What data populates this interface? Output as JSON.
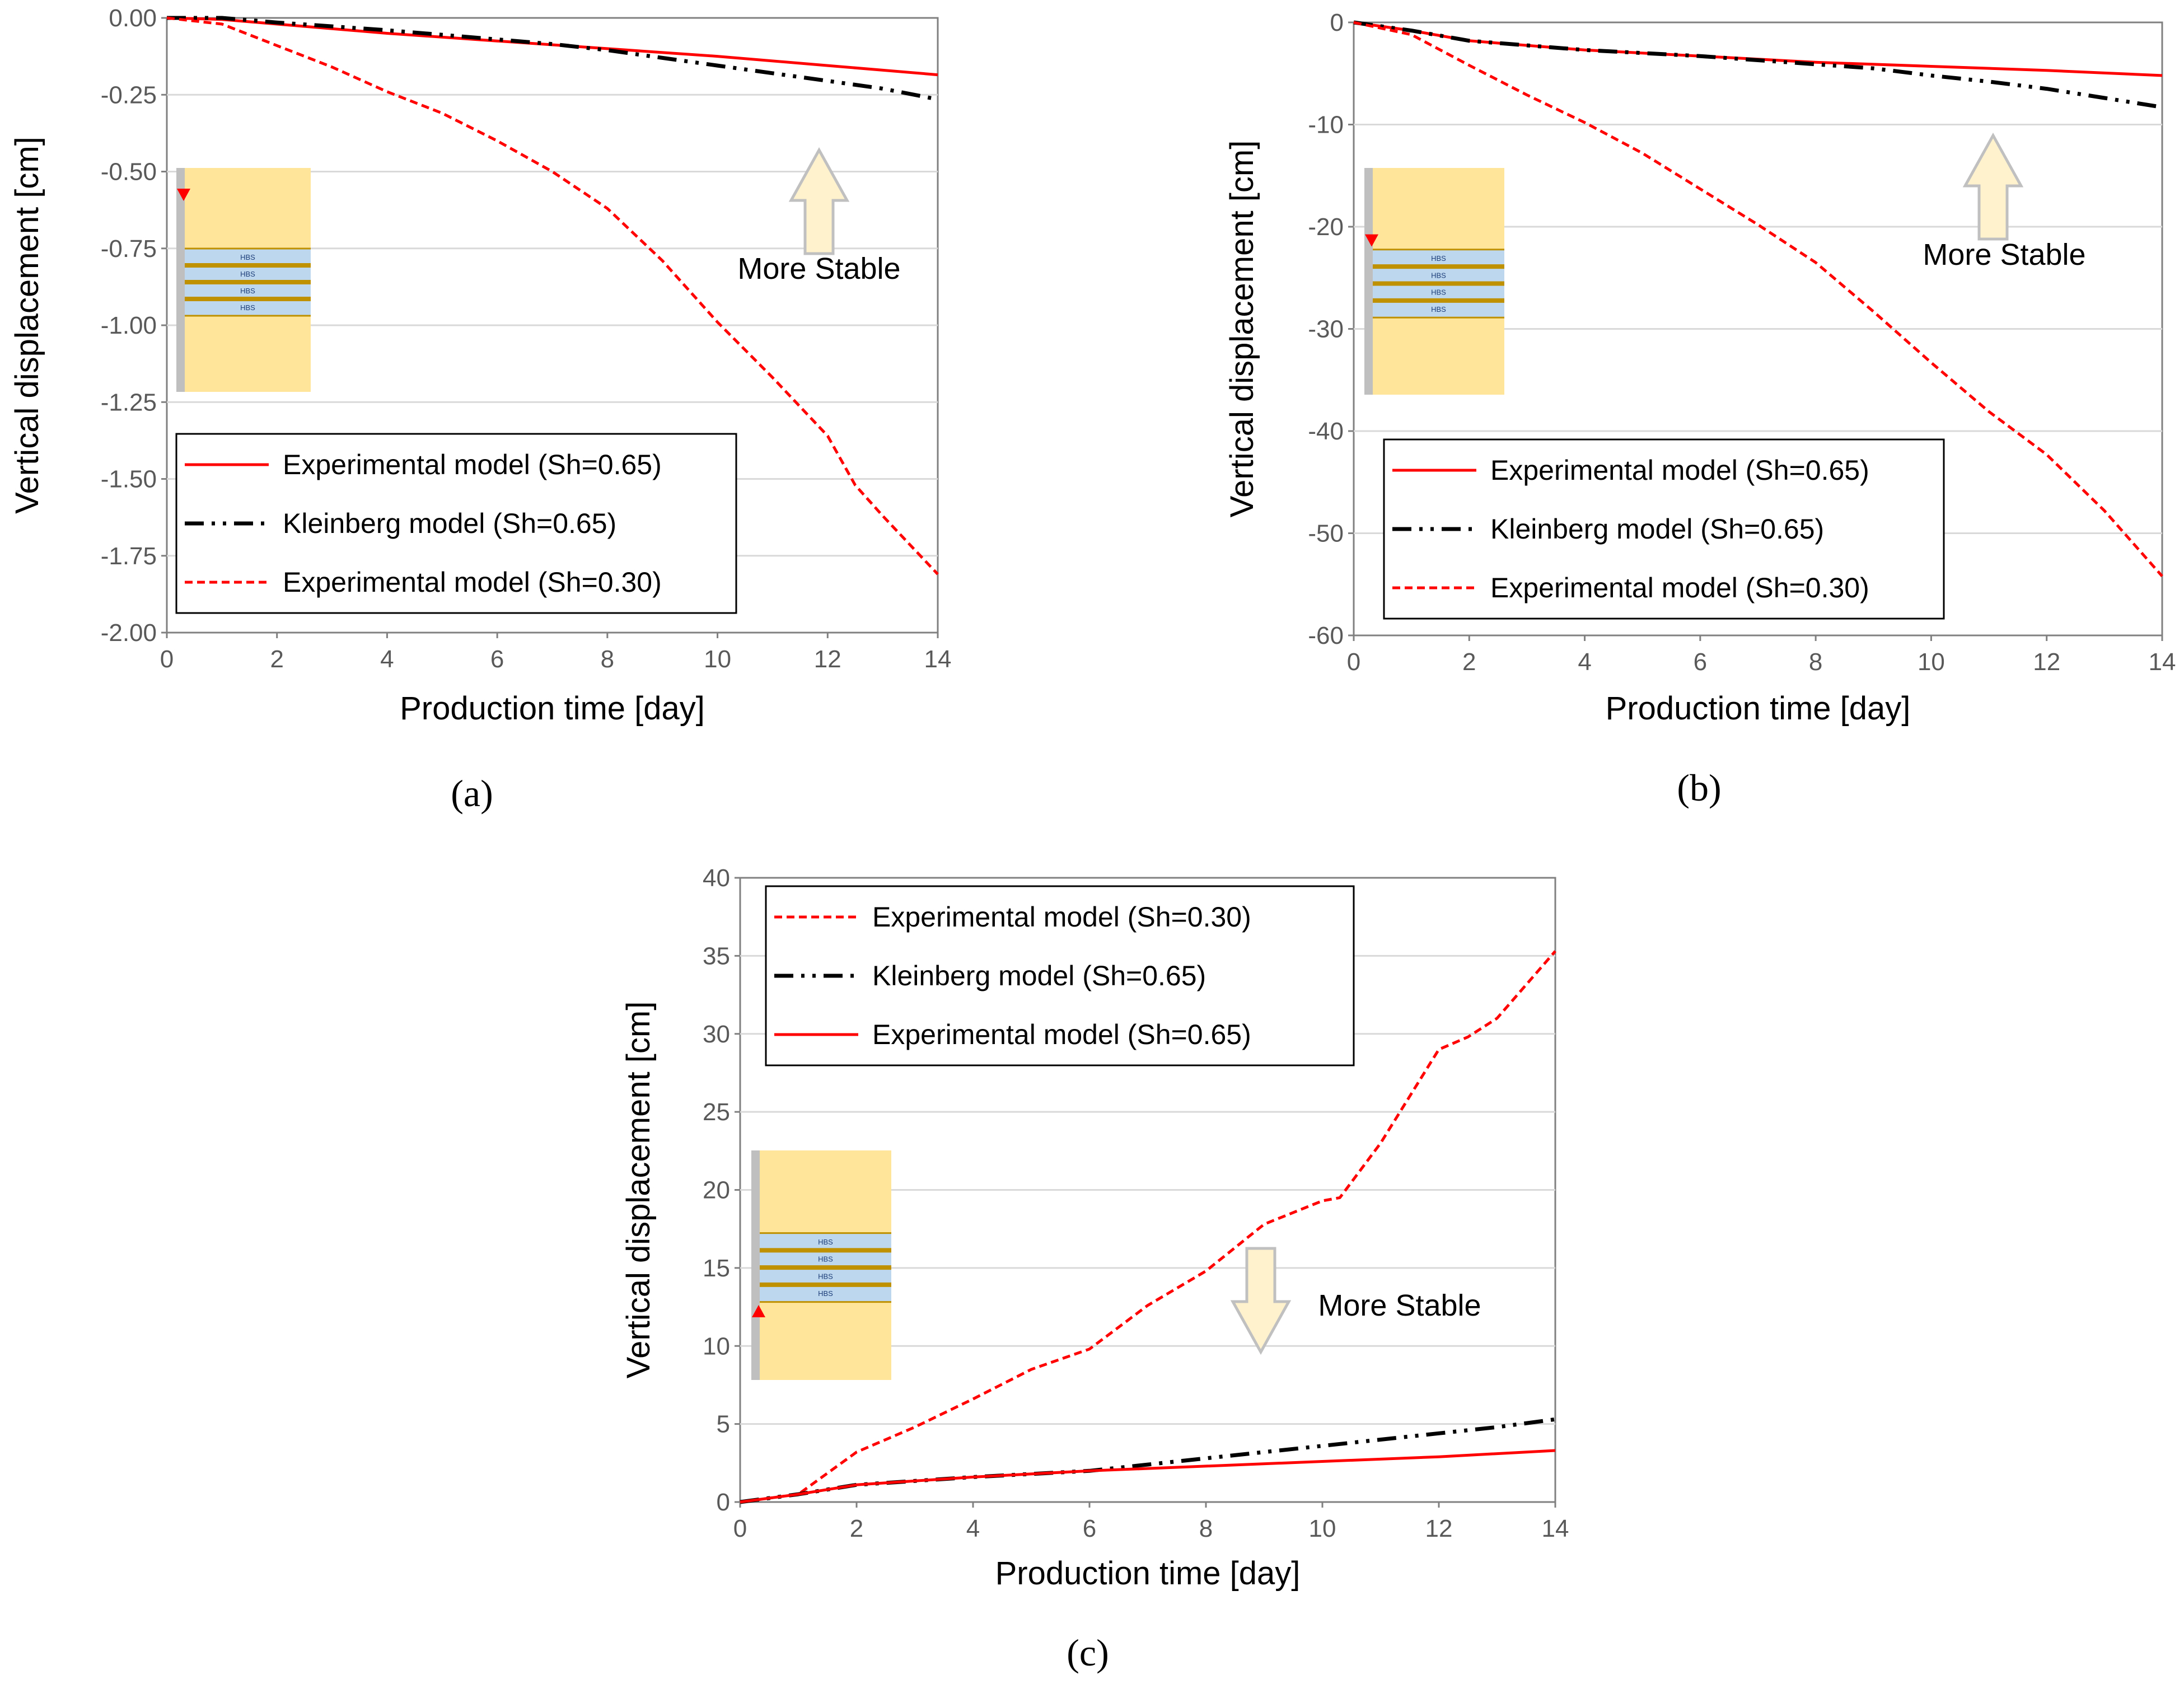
{
  "chart_data": [
    {
      "id": "a",
      "type": "line",
      "caption_letter": "a",
      "xlabel": "Production time [day]",
      "ylabel": "Vertical displacement [cm]",
      "xlim": [
        0,
        14
      ],
      "ylim": [
        -2.0,
        0.0
      ],
      "xticks": [
        "0",
        "2",
        "4",
        "6",
        "8",
        "10",
        "12",
        "14"
      ],
      "yticks": [
        "0.00",
        "-0.25",
        "-0.50",
        "-0.75",
        "-1.00",
        "-1.25",
        "-1.50",
        "-1.75",
        "-2.00"
      ],
      "grid": true,
      "legend_position": "bottom-left",
      "annotation": "More Stable",
      "annotation_direction": "up",
      "hbs_label": "HBS",
      "marker_direction": "down",
      "series": [
        {
          "name": "Experimental model (Sh=0.65)",
          "style": "solid",
          "color": "#ff0000",
          "x": [
            0,
            1,
            2,
            4,
            6,
            8,
            10,
            12,
            14
          ],
          "y": [
            0,
            -0.005,
            -0.02,
            -0.05,
            -0.075,
            -0.1,
            -0.125,
            -0.155,
            -0.185
          ]
        },
        {
          "name": "Kleinberg model (Sh=0.65)",
          "style": "dashdotdot",
          "color": "#000000",
          "x": [
            0,
            1,
            2,
            4,
            6,
            7,
            8,
            9,
            10,
            11,
            12,
            13,
            14
          ],
          "y": [
            0,
            0,
            -0.015,
            -0.04,
            -0.07,
            -0.085,
            -0.105,
            -0.13,
            -0.155,
            -0.18,
            -0.205,
            -0.23,
            -0.265
          ]
        },
        {
          "name": "Experimental model (Sh=0.30)",
          "style": "dashed",
          "color": "#ff0000",
          "x": [
            0,
            1,
            2,
            3,
            4,
            5,
            6,
            7,
            8,
            9,
            10,
            11,
            12,
            12.5,
            13,
            14
          ],
          "y": [
            0,
            -0.02,
            -0.09,
            -0.16,
            -0.24,
            -0.31,
            -0.4,
            -0.5,
            -0.62,
            -0.79,
            -0.99,
            -1.17,
            -1.36,
            -1.52,
            -1.62,
            -1.81
          ]
        }
      ]
    },
    {
      "id": "b",
      "type": "line",
      "caption_letter": "b",
      "xlabel": "Production time [day]",
      "ylabel": "Vertical displacement [cm]",
      "xlim": [
        0,
        14
      ],
      "ylim": [
        -60,
        0
      ],
      "xticks": [
        "0",
        "2",
        "4",
        "6",
        "8",
        "10",
        "12",
        "14"
      ],
      "yticks": [
        "0",
        "-10",
        "-20",
        "-30",
        "-40",
        "-50",
        "-60"
      ],
      "grid": true,
      "legend_position": "bottom-left",
      "annotation": "More Stable",
      "annotation_direction": "up",
      "hbs_label": "HBS",
      "marker_direction": "down",
      "series": [
        {
          "name": "Experimental model (Sh=0.65)",
          "style": "solid",
          "color": "#ff0000",
          "x": [
            0,
            1,
            2,
            4,
            6,
            8,
            10,
            12,
            14
          ],
          "y": [
            0,
            -0.8,
            -1.8,
            -2.7,
            -3.3,
            -3.9,
            -4.3,
            -4.7,
            -5.2
          ]
        },
        {
          "name": "Kleinberg model (Sh=0.65)",
          "style": "dashdotdot",
          "color": "#000000",
          "x": [
            0,
            1,
            2,
            4,
            6,
            8,
            9,
            10,
            11,
            12,
            13,
            14
          ],
          "y": [
            0,
            -0.8,
            -1.8,
            -2.7,
            -3.3,
            -4.1,
            -4.5,
            -5.2,
            -5.8,
            -6.5,
            -7.4,
            -8.3
          ]
        },
        {
          "name": "Experimental model (Sh=0.30)",
          "style": "dashed",
          "color": "#ff0000",
          "x": [
            0,
            1,
            2,
            3,
            4,
            5,
            6,
            7,
            8,
            9,
            10,
            11,
            12,
            13,
            14
          ],
          "y": [
            0,
            -1.2,
            -4.2,
            -7.1,
            -9.8,
            -12.8,
            -16.3,
            -19.8,
            -23.5,
            -28.3,
            -33.3,
            -38.1,
            -42.3,
            -47.8,
            -54.2
          ]
        }
      ]
    },
    {
      "id": "c",
      "type": "line",
      "caption_letter": "c",
      "xlabel": "Production time [day]",
      "ylabel": "Vertical displacement [cm]",
      "xlim": [
        0,
        14
      ],
      "ylim": [
        0,
        40
      ],
      "xticks": [
        "0",
        "2",
        "4",
        "6",
        "8",
        "10",
        "12",
        "14"
      ],
      "yticks": [
        "40",
        "35",
        "30",
        "25",
        "20",
        "15",
        "10",
        "5",
        "0"
      ],
      "grid": true,
      "legend_position": "top-left",
      "annotation": "More Stable",
      "annotation_direction": "down",
      "hbs_label": "HBS",
      "marker_direction": "up",
      "series": [
        {
          "name": "Experimental model (Sh=0.30)",
          "style": "dashed",
          "color": "#ff0000",
          "x": [
            0,
            1,
            2,
            3,
            4,
            5,
            6,
            7,
            8,
            9,
            10,
            10.3,
            11,
            12,
            12.5,
            13,
            14
          ],
          "y": [
            0,
            0.5,
            3.2,
            4.8,
            6.6,
            8.5,
            9.8,
            12.6,
            14.8,
            17.8,
            19.3,
            19.5,
            23,
            29,
            29.8,
            31,
            35.3
          ]
        },
        {
          "name": "Kleinberg model (Sh=0.65)",
          "style": "dashdotdot",
          "color": "#000000",
          "x": [
            0,
            1,
            2,
            4,
            6,
            7,
            8,
            9,
            10,
            11,
            12,
            13,
            14
          ],
          "y": [
            0,
            0.5,
            1.1,
            1.6,
            2.0,
            2.4,
            2.8,
            3.2,
            3.6,
            4.0,
            4.4,
            4.8,
            5.3
          ]
        },
        {
          "name": "Experimental model (Sh=0.65)",
          "style": "solid",
          "color": "#ff0000",
          "x": [
            0,
            1,
            2,
            4,
            6,
            8,
            10,
            12,
            14
          ],
          "y": [
            0,
            0.5,
            1.1,
            1.6,
            2.0,
            2.3,
            2.6,
            2.9,
            3.3
          ]
        }
      ]
    }
  ],
  "captions": {
    "a": "(a)",
    "b": "(b)",
    "c": "(c)"
  },
  "colors": {
    "sand": "#fee599",
    "hbs": "#bdd7ee",
    "interlayer": "#bf9000",
    "well": "#bfbfbf",
    "marker": "#ff0000",
    "arrow_fill": "#fff2cc",
    "arrow_stroke": "#c0c0c0",
    "grid": "#d9d9d9",
    "axis": "#808080"
  }
}
